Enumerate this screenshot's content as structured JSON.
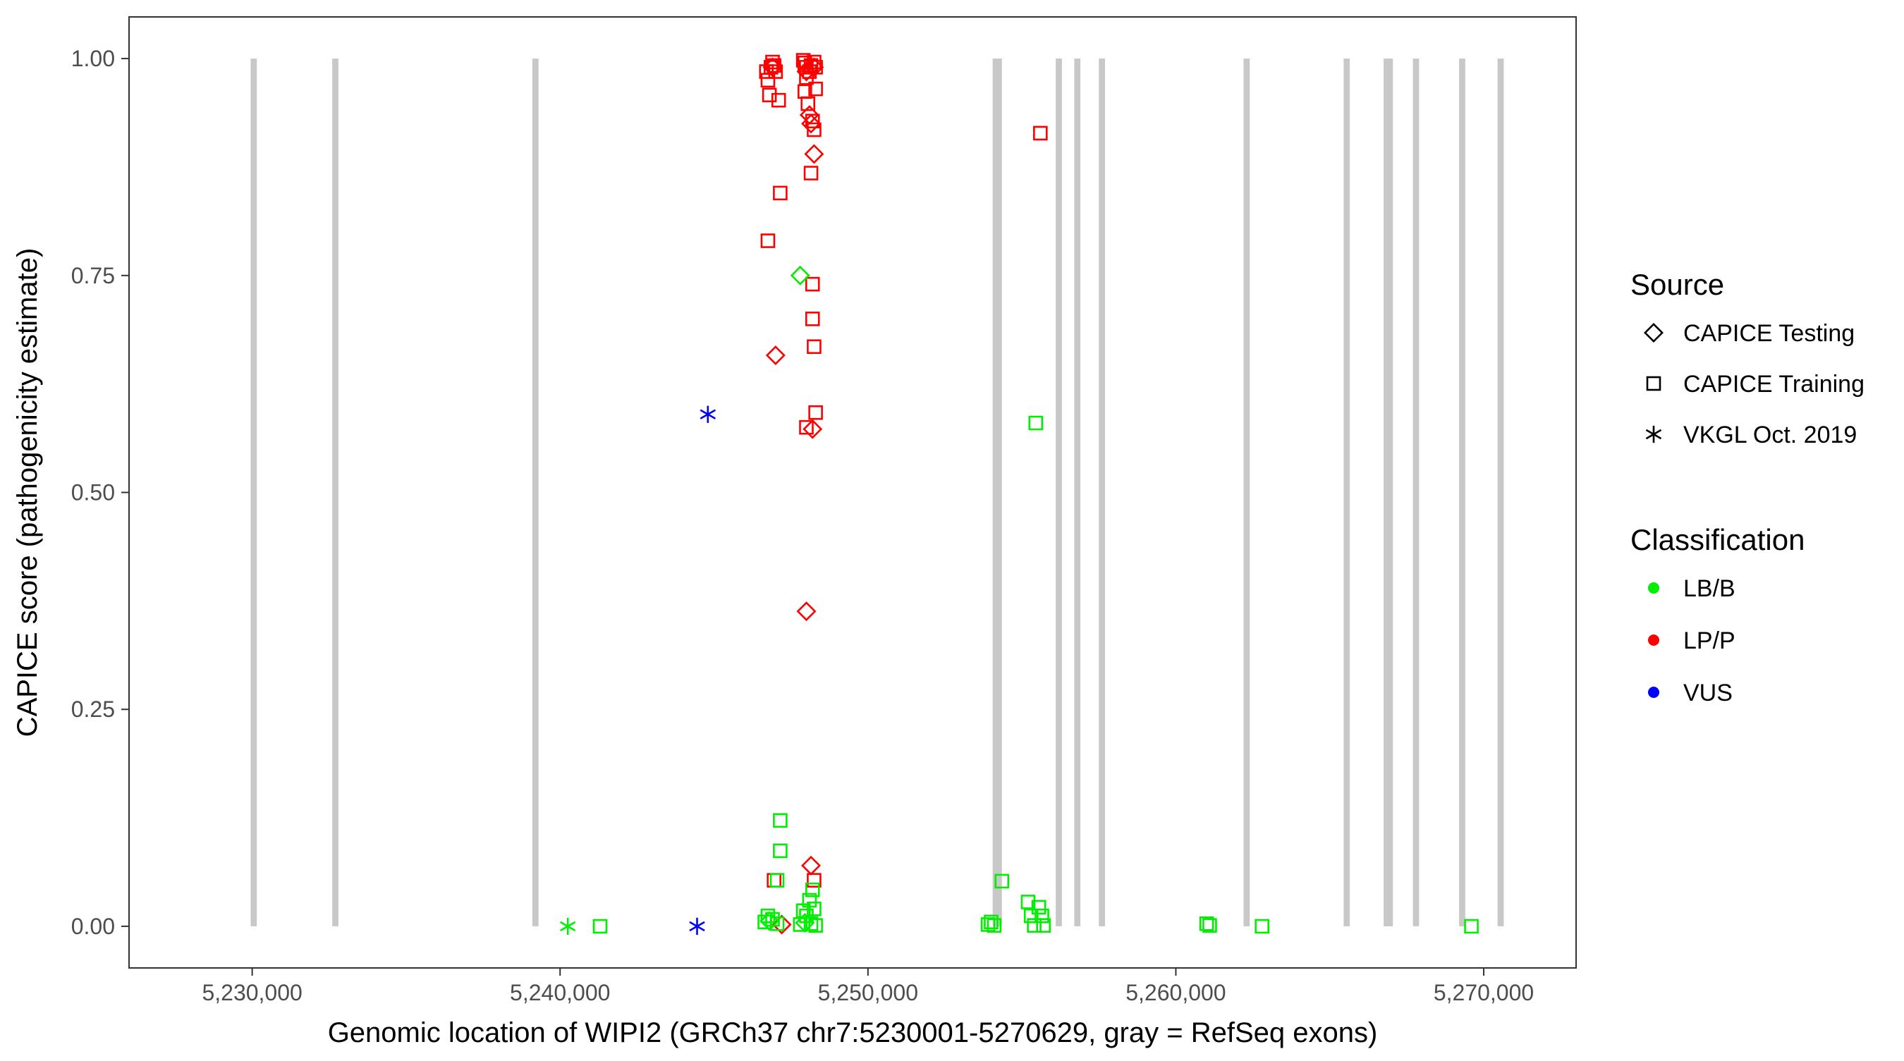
{
  "chart_data": {
    "type": "scatter",
    "title": "",
    "xlabel": "Genomic location of WIPI2 (GRCh37 chr7:5230001-5270629, gray = RefSeq exons)",
    "ylabel": "CAPICE score (pathogenicity estimate)",
    "xlim": [
      5226000,
      5273000
    ],
    "ylim": [
      -0.048,
      1.048
    ],
    "x_ticks": [
      5230000,
      5240000,
      5250000,
      5260000,
      5270000
    ],
    "x_tick_labels": [
      "5,230,000",
      "5,240,000",
      "5,250,000",
      "5,260,000",
      "5,270,000"
    ],
    "y_ticks": [
      0,
      0.25,
      0.5,
      0.75,
      1.0
    ],
    "y_tick_labels": [
      "0.00",
      "0.25",
      "0.50",
      "0.75",
      "1.00"
    ],
    "grid": false,
    "exons": [
      {
        "start": 5229950,
        "end": 5230150
      },
      {
        "start": 5232600,
        "end": 5232800
      },
      {
        "start": 5239100,
        "end": 5239300
      },
      {
        "start": 5254050,
        "end": 5254350
      },
      {
        "start": 5256100,
        "end": 5256300
      },
      {
        "start": 5256700,
        "end": 5256900
      },
      {
        "start": 5257500,
        "end": 5257700
      },
      {
        "start": 5262200,
        "end": 5262400
      },
      {
        "start": 5265450,
        "end": 5265650
      },
      {
        "start": 5266750,
        "end": 5267050
      },
      {
        "start": 5267700,
        "end": 5267900
      },
      {
        "start": 5269200,
        "end": 5269400
      },
      {
        "start": 5270450,
        "end": 5270650
      }
    ],
    "legend": {
      "position": "right",
      "source_title": "Source",
      "source_items": [
        {
          "label": "CAPICE Testing",
          "shape": "diamond"
        },
        {
          "label": "CAPICE Training",
          "shape": "square"
        },
        {
          "label": "VKGL Oct. 2019",
          "shape": "asterisk"
        }
      ],
      "classification_title": "Classification",
      "classification_items": [
        {
          "label": "LB/B",
          "color": "#00ee00"
        },
        {
          "label": "LP/P",
          "color": "#ff0000"
        },
        {
          "label": "VUS",
          "color": "#0000ff"
        }
      ]
    },
    "series": [
      {
        "source": "CAPICE Training",
        "classification": "LP/P",
        "shape": "square",
        "color": "#ff0000",
        "points": [
          [
            5246700,
            0.985
          ],
          [
            5246750,
            0.975
          ],
          [
            5246850,
            0.99
          ],
          [
            5246900,
            0.996
          ],
          [
            5246950,
            0.992
          ],
          [
            5247000,
            0.985
          ],
          [
            5246800,
            0.958
          ],
          [
            5247100,
            0.952
          ],
          [
            5247150,
            0.845
          ],
          [
            5246750,
            0.79
          ],
          [
            5247900,
            0.998
          ],
          [
            5247950,
            0.995
          ],
          [
            5248000,
            0.99
          ],
          [
            5248100,
            0.985
          ],
          [
            5248150,
            0.992
          ],
          [
            5248250,
            0.996
          ],
          [
            5248300,
            0.99
          ],
          [
            5248000,
            0.978
          ],
          [
            5247950,
            0.962
          ],
          [
            5248300,
            0.965
          ],
          [
            5248050,
            0.948
          ],
          [
            5248200,
            0.928
          ],
          [
            5248150,
            0.868
          ],
          [
            5248250,
            0.918
          ],
          [
            5248200,
            0.74
          ],
          [
            5248200,
            0.7
          ],
          [
            5248250,
            0.668
          ],
          [
            5248300,
            0.592
          ],
          [
            5248000,
            0.575
          ],
          [
            5246950,
            0.053
          ],
          [
            5248250,
            0.053
          ],
          [
            5255600,
            0.914
          ]
        ]
      },
      {
        "source": "CAPICE Testing",
        "classification": "LP/P",
        "shape": "diamond",
        "color": "#ff0000",
        "points": [
          [
            5246900,
            0.99
          ],
          [
            5248000,
            0.985
          ],
          [
            5248250,
            0.99
          ],
          [
            5248100,
            0.935
          ],
          [
            5248150,
            0.925
          ],
          [
            5248250,
            0.89
          ],
          [
            5247000,
            0.658
          ],
          [
            5248200,
            0.573
          ],
          [
            5248000,
            0.363
          ],
          [
            5248150,
            0.07
          ],
          [
            5247200,
            0.002
          ]
        ]
      },
      {
        "source": "CAPICE Testing",
        "classification": "LB/B",
        "shape": "diamond",
        "color": "#00ee00",
        "points": [
          [
            5247800,
            0.75
          ],
          [
            5246800,
            0.006
          ],
          [
            5247950,
            0.004
          ]
        ]
      },
      {
        "source": "CAPICE Training",
        "classification": "LB/B",
        "shape": "square",
        "color": "#00ee00",
        "points": [
          [
            5241300,
            0.0
          ],
          [
            5246650,
            0.005
          ],
          [
            5246750,
            0.012
          ],
          [
            5246900,
            0.008
          ],
          [
            5247050,
            0.003
          ],
          [
            5247150,
            0.122
          ],
          [
            5247150,
            0.087
          ],
          [
            5247050,
            0.053
          ],
          [
            5247800,
            0.002
          ],
          [
            5247900,
            0.018
          ],
          [
            5248000,
            0.012
          ],
          [
            5248100,
            0.03
          ],
          [
            5248150,
            0.003
          ],
          [
            5248200,
            0.042
          ],
          [
            5248250,
            0.02
          ],
          [
            5248300,
            0.001
          ],
          [
            5253900,
            0.002
          ],
          [
            5254000,
            0.005
          ],
          [
            5254100,
            0.001
          ],
          [
            5254350,
            0.052
          ],
          [
            5255200,
            0.028
          ],
          [
            5255300,
            0.012
          ],
          [
            5255400,
            0.001
          ],
          [
            5255550,
            0.022
          ],
          [
            5255650,
            0.012
          ],
          [
            5255700,
            0.001
          ],
          [
            5255450,
            0.58
          ],
          [
            5261000,
            0.003
          ],
          [
            5261100,
            0.001
          ],
          [
            5262800,
            0.0
          ],
          [
            5269600,
            0.0
          ]
        ]
      },
      {
        "source": "VKGL Oct. 2019",
        "classification": "LB/B",
        "shape": "asterisk",
        "color": "#00ee00",
        "points": [
          [
            5240250,
            0.0
          ]
        ]
      },
      {
        "source": "VKGL Oct. 2019",
        "classification": "VUS",
        "shape": "asterisk",
        "color": "#0000ff",
        "points": [
          [
            5244800,
            0.59
          ],
          [
            5244450,
            0.0
          ]
        ]
      }
    ]
  }
}
